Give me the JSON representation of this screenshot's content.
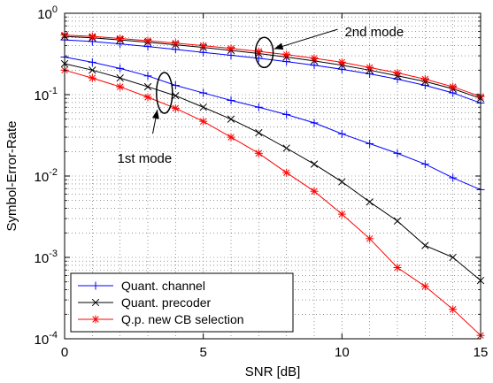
{
  "chart_data": {
    "type": "line",
    "xlabel": "SNR [dB]",
    "ylabel": "Symbol-Error-Rate",
    "xlim": [
      0,
      15
    ],
    "ylim": [
      0.0001,
      1
    ],
    "yscale": "log",
    "grid": true,
    "legend_placement": "bottom-left",
    "x_ticks": [
      0,
      5,
      10,
      15
    ],
    "y_ticks": [
      {
        "value": 1,
        "base": "10",
        "exp": "0"
      },
      {
        "value": 0.1,
        "base": "10",
        "exp": "-1"
      },
      {
        "value": 0.01,
        "base": "10",
        "exp": "-2"
      },
      {
        "value": 0.001,
        "base": "10",
        "exp": "-3"
      },
      {
        "value": 0.0001,
        "base": "10",
        "exp": "-4"
      }
    ],
    "x": [
      0,
      1,
      2,
      3,
      4,
      5,
      6,
      7,
      8,
      9,
      10,
      11,
      12,
      13,
      14,
      15
    ],
    "series": [
      {
        "name": "Quant. channel",
        "group": "1st mode",
        "color": "#0000ff",
        "marker": "plus",
        "values": [
          0.29,
          0.25,
          0.21,
          0.17,
          0.13,
          0.105,
          0.085,
          0.07,
          0.057,
          0.045,
          0.033,
          0.025,
          0.019,
          0.014,
          0.0095,
          0.0068
        ]
      },
      {
        "name": "Quant. precoder",
        "group": "1st mode",
        "color": "#000000",
        "marker": "x",
        "values": [
          0.24,
          0.2,
          0.16,
          0.125,
          0.097,
          0.07,
          0.05,
          0.034,
          0.022,
          0.014,
          0.0085,
          0.0048,
          0.0028,
          0.0014,
          0.001,
          0.00052
        ]
      },
      {
        "name": "Q.p. new CB selection",
        "group": "1st mode",
        "color": "#ff0000",
        "marker": "star",
        "values": [
          0.2,
          0.16,
          0.125,
          0.093,
          0.068,
          0.047,
          0.03,
          0.019,
          0.011,
          0.0065,
          0.0034,
          0.0017,
          0.00075,
          0.00044,
          0.00023,
          0.00011
        ]
      },
      {
        "name": "Quant. channel",
        "group": "2nd mode",
        "color": "#0000ff",
        "marker": "plus",
        "legend": false,
        "values": [
          0.47,
          0.45,
          0.42,
          0.39,
          0.36,
          0.33,
          0.305,
          0.28,
          0.255,
          0.23,
          0.205,
          0.18,
          0.155,
          0.13,
          0.105,
          0.079
        ]
      },
      {
        "name": "Quant. precoder",
        "group": "2nd mode",
        "color": "#000000",
        "marker": "x",
        "legend": false,
        "values": [
          0.52,
          0.5,
          0.47,
          0.44,
          0.41,
          0.38,
          0.35,
          0.32,
          0.29,
          0.26,
          0.23,
          0.2,
          0.17,
          0.145,
          0.118,
          0.09
        ]
      },
      {
        "name": "Q.p. new CB selection",
        "group": "2nd mode",
        "color": "#ff0000",
        "marker": "star",
        "legend": false,
        "values": [
          0.54,
          0.52,
          0.49,
          0.46,
          0.43,
          0.4,
          0.37,
          0.34,
          0.31,
          0.28,
          0.25,
          0.215,
          0.185,
          0.155,
          0.125,
          0.095
        ]
      }
    ],
    "legend": [
      {
        "label": "Quant. channel",
        "color": "#0000ff",
        "marker": "plus"
      },
      {
        "label": "Quant. precoder",
        "color": "#000000",
        "marker": "x"
      },
      {
        "label": "Q.p. new CB selection",
        "color": "#ff0000",
        "marker": "star"
      }
    ],
    "annotations": [
      {
        "text": "2nd mode",
        "ellipse_x": 7.2,
        "ellipse_y": 0.33,
        "text_x": 10.1,
        "text_y": 0.52
      },
      {
        "text": "1st mode",
        "ellipse_x": 3.6,
        "ellipse_y": 0.105,
        "text_x": 1.9,
        "text_y": 0.0145
      }
    ]
  }
}
